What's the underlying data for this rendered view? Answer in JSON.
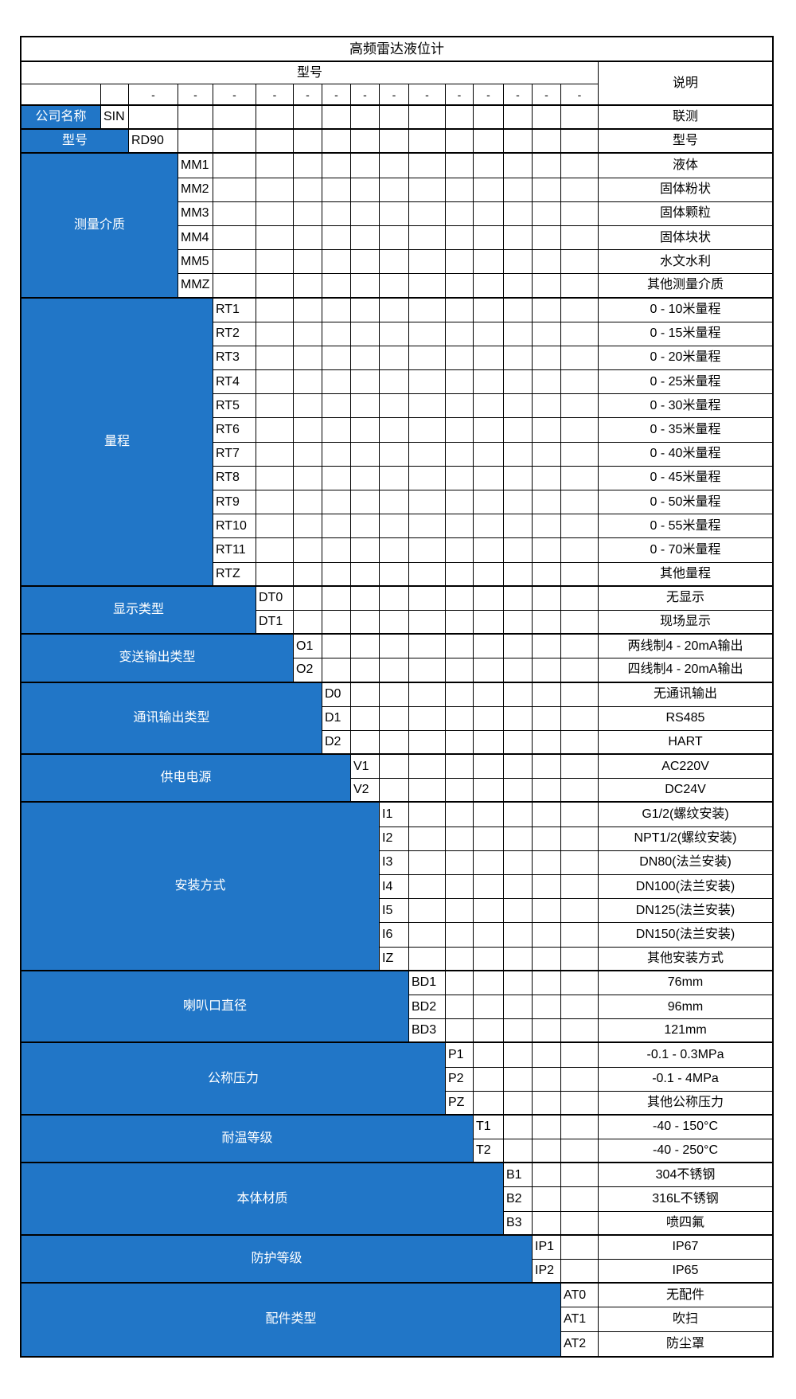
{
  "title": "高频雷达液位计",
  "brand_color": "#2176c7",
  "header": {
    "model_label": "型号",
    "desc_label": "说明",
    "dash": "-"
  },
  "groups": [
    {
      "label": "公司名称",
      "code_col": 2,
      "rows": [
        {
          "code": "SIN",
          "desc": "联测"
        }
      ]
    },
    {
      "label": "型号",
      "code_col": 3,
      "rows": [
        {
          "code": "RD90",
          "desc": "型号"
        }
      ]
    },
    {
      "label": "测量介质",
      "code_col": 4,
      "rows": [
        {
          "code": "MM1",
          "desc": "液体"
        },
        {
          "code": "MM2",
          "desc": "固体粉状"
        },
        {
          "code": "MM3",
          "desc": "固体颗粒"
        },
        {
          "code": "MM4",
          "desc": "固体块状"
        },
        {
          "code": "MM5",
          "desc": "水文水利"
        },
        {
          "code": "MMZ",
          "desc": "其他测量介质"
        }
      ]
    },
    {
      "label": "量程",
      "code_col": 5,
      "rows": [
        {
          "code": "RT1",
          "desc": "0 - 10米量程"
        },
        {
          "code": "RT2",
          "desc": "0 - 15米量程"
        },
        {
          "code": "RT3",
          "desc": "0 - 20米量程"
        },
        {
          "code": "RT4",
          "desc": "0 - 25米量程"
        },
        {
          "code": "RT5",
          "desc": "0 - 30米量程"
        },
        {
          "code": "RT6",
          "desc": "0 - 35米量程"
        },
        {
          "code": "RT7",
          "desc": "0 - 40米量程"
        },
        {
          "code": "RT8",
          "desc": "0 - 45米量程"
        },
        {
          "code": "RT9",
          "desc": "0 - 50米量程"
        },
        {
          "code": "RT10",
          "desc": "0 - 55米量程"
        },
        {
          "code": "RT11",
          "desc": "0 - 70米量程"
        },
        {
          "code": "RTZ",
          "desc": "其他量程"
        }
      ]
    },
    {
      "label": "显示类型",
      "code_col": 6,
      "rows": [
        {
          "code": "DT0",
          "desc": "无显示"
        },
        {
          "code": "DT1",
          "desc": "现场显示"
        }
      ]
    },
    {
      "label": "变送输出类型",
      "code_col": 7,
      "rows": [
        {
          "code": "O1",
          "desc": "两线制4 - 20mA输出"
        },
        {
          "code": "O2",
          "desc": "四线制4 - 20mA输出"
        }
      ]
    },
    {
      "label": "通讯输出类型",
      "code_col": 8,
      "rows": [
        {
          "code": "D0",
          "desc": "无通讯输出"
        },
        {
          "code": "D1",
          "desc": "RS485"
        },
        {
          "code": "D2",
          "desc": "HART"
        }
      ]
    },
    {
      "label": "供电电源",
      "code_col": 9,
      "rows": [
        {
          "code": "V1",
          "desc": "AC220V"
        },
        {
          "code": "V2",
          "desc": "DC24V"
        }
      ]
    },
    {
      "label": "安装方式",
      "code_col": 10,
      "rows": [
        {
          "code": "I1",
          "desc": "G1/2(螺纹安装)"
        },
        {
          "code": "I2",
          "desc": "NPT1/2(螺纹安装)"
        },
        {
          "code": "I3",
          "desc": "DN80(法兰安装)"
        },
        {
          "code": "I4",
          "desc": "DN100(法兰安装)"
        },
        {
          "code": "I5",
          "desc": "DN125(法兰安装)"
        },
        {
          "code": "I6",
          "desc": "DN150(法兰安装)"
        },
        {
          "code": "IZ",
          "desc": "其他安装方式"
        }
      ]
    },
    {
      "label": "喇叭口直径",
      "code_col": 11,
      "rows": [
        {
          "code": "BD1",
          "desc": "76mm"
        },
        {
          "code": "BD2",
          "desc": "96mm"
        },
        {
          "code": "BD3",
          "desc": "121mm"
        }
      ]
    },
    {
      "label": "公称压力",
      "code_col": 12,
      "rows": [
        {
          "code": "P1",
          "desc": "-0.1 - 0.3MPa"
        },
        {
          "code": "P2",
          "desc": "-0.1 - 4MPa"
        },
        {
          "code": "PZ",
          "desc": "其他公称压力"
        }
      ]
    },
    {
      "label": "耐温等级",
      "code_col": 13,
      "rows": [
        {
          "code": "T1",
          "desc": "-40 - 150°C"
        },
        {
          "code": "T2",
          "desc": "-40 - 250°C"
        }
      ]
    },
    {
      "label": "本体材质",
      "code_col": 14,
      "rows": [
        {
          "code": "B1",
          "desc": "304不锈钢"
        },
        {
          "code": "B2",
          "desc": "316L不锈钢"
        },
        {
          "code": "B3",
          "desc": "喷四氟"
        }
      ]
    },
    {
      "label": "防护等级",
      "code_col": 15,
      "rows": [
        {
          "code": "IP1",
          "desc": "IP67"
        },
        {
          "code": "IP2",
          "desc": "IP65"
        }
      ]
    },
    {
      "label": "配件类型",
      "code_col": 16,
      "rows": [
        {
          "code": "AT0",
          "desc": "无配件"
        },
        {
          "code": "AT1",
          "desc": "吹扫"
        },
        {
          "code": "AT2",
          "desc": "防尘罩"
        }
      ]
    }
  ]
}
